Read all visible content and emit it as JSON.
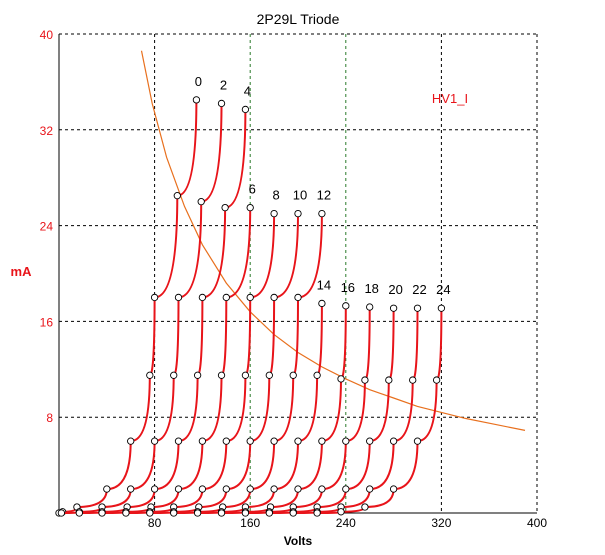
{
  "chart_data": {
    "type": "line",
    "title": "2P29L Triode",
    "xlabel": "Volts",
    "ylabel": "mA",
    "xlim": [
      0,
      400
    ],
    "ylim": [
      0,
      40
    ],
    "xticks": [
      80,
      160,
      240,
      320,
      400
    ],
    "yticks": [
      8,
      16,
      24,
      32,
      40
    ],
    "grid": true,
    "colors": {
      "curves": "#e8141a",
      "load_line": "#e8701e",
      "axis_labels": "#e8141a",
      "text": "#000000"
    },
    "annotation": "HV1_I",
    "y_levels": [
      0,
      0.1,
      0.5,
      2,
      6,
      11.5,
      18
    ],
    "series": [
      {
        "name": "0",
        "x": [
          0,
          3,
          15,
          40,
          60,
          76,
          80,
          99
        ],
        "y": [
          0,
          0.1,
          0.5,
          2,
          6,
          11.5,
          18,
          26.5
        ],
        "tip": [
          115,
          34.5
        ]
      },
      {
        "name": "2",
        "x": [
          2,
          17,
          36,
          60,
          80,
          96,
          100,
          119
        ],
        "y": [
          0,
          0.1,
          0.5,
          2,
          6,
          11.5,
          18,
          26
        ],
        "tip": [
          136,
          34.2
        ]
      },
      {
        "name": "4",
        "x": [
          17,
          36,
          57,
          80,
          100,
          116,
          120,
          139
        ],
        "y": [
          0,
          0.1,
          0.5,
          2,
          6,
          11.5,
          18,
          25.5
        ],
        "tip": [
          156,
          33.7
        ]
      },
      {
        "name": "6",
        "x": [
          36,
          56,
          77,
          100,
          120,
          136,
          140,
          160
        ],
        "y": [
          0,
          0.1,
          0.5,
          2,
          6,
          11.5,
          18,
          25.5
        ]
      },
      {
        "name": "8",
        "x": [
          56,
          76,
          96,
          120,
          140,
          156,
          160,
          180
        ],
        "y": [
          0,
          0.1,
          0.5,
          2,
          6,
          11.5,
          18,
          25
        ]
      },
      {
        "name": "10",
        "x": [
          76,
          96,
          117,
          140,
          160,
          176,
          180,
          200
        ],
        "y": [
          0,
          0.1,
          0.5,
          2,
          6,
          11.5,
          18,
          25
        ]
      },
      {
        "name": "12",
        "x": [
          96,
          116,
          137,
          160,
          180,
          196,
          200,
          220
        ],
        "y": [
          0,
          0.1,
          0.5,
          2,
          6,
          11.5,
          18,
          25
        ]
      },
      {
        "name": "14",
        "x": [
          116,
          136,
          156,
          180,
          200,
          216,
          220
        ],
        "y": [
          0,
          0.1,
          0.5,
          2,
          6,
          11.5,
          17.5
        ]
      },
      {
        "name": "16",
        "x": [
          136,
          156,
          177,
          200,
          220,
          236,
          240
        ],
        "y": [
          0,
          0.1,
          0.5,
          2,
          6,
          11.2,
          17.3
        ]
      },
      {
        "name": "18",
        "x": [
          156,
          176,
          196,
          220,
          240,
          256,
          260
        ],
        "y": [
          0,
          0.1,
          0.5,
          2,
          6,
          11.1,
          17.2
        ]
      },
      {
        "name": "20",
        "x": [
          176,
          196,
          216,
          240,
          260,
          276,
          280
        ],
        "y": [
          0,
          0.1,
          0.5,
          2,
          6,
          11.1,
          17.1
        ]
      },
      {
        "name": "22",
        "x": [
          196,
          216,
          236,
          260,
          280,
          296,
          300
        ],
        "y": [
          0,
          0.1,
          0.5,
          2,
          6,
          11.1,
          17.1
        ]
      },
      {
        "name": "24",
        "x": [
          216,
          236,
          256,
          280,
          300,
          316,
          320
        ],
        "y": [
          0,
          0.1,
          0.5,
          2,
          6,
          11.1,
          17.1
        ]
      }
    ],
    "load_line": {
      "name": "HV1_I",
      "x": [
        69,
        78,
        90,
        105,
        120,
        140,
        160,
        180,
        200,
        220,
        240,
        260,
        280,
        300,
        320,
        340,
        360,
        390
      ],
      "y": [
        38.6,
        34.2,
        29.7,
        25.6,
        22.4,
        19.2,
        16.8,
        14.9,
        13.4,
        12.2,
        11.2,
        10.3,
        9.6,
        8.9,
        8.4,
        7.9,
        7.5,
        6.9
      ]
    }
  }
}
